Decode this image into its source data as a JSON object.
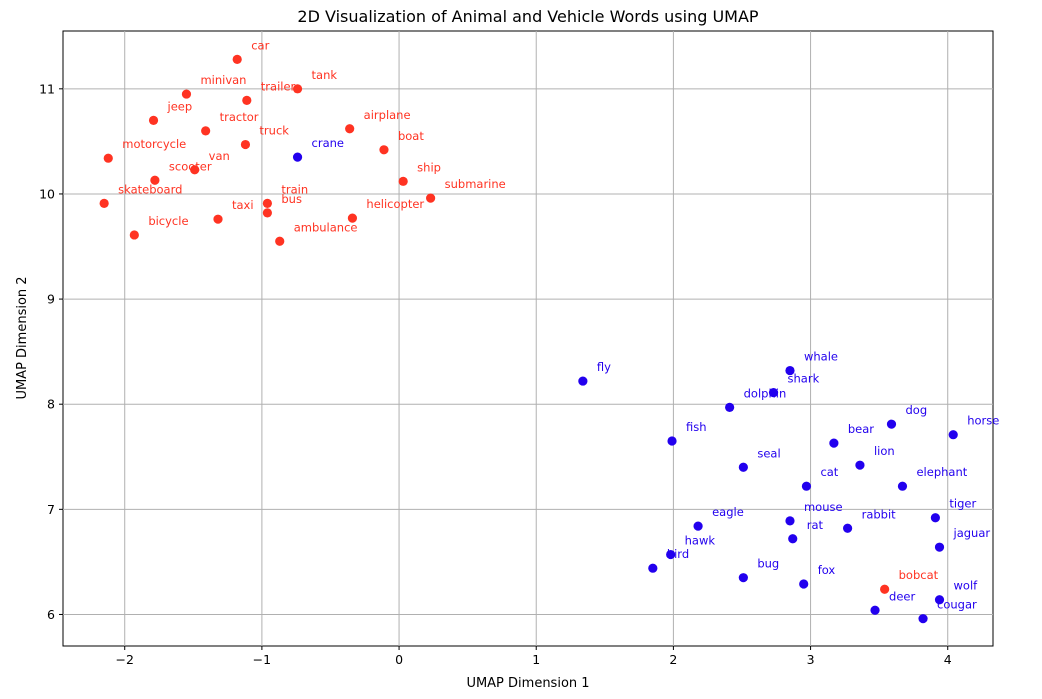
{
  "chart_data": {
    "type": "scatter",
    "title": "2D Visualization of Animal and Vehicle Words using UMAP",
    "xlabel": "UMAP Dimension 1",
    "ylabel": "UMAP Dimension 2",
    "xlim": [
      -2.45,
      4.33
    ],
    "ylim": [
      5.7,
      11.55
    ],
    "xticks": [
      -2,
      -1,
      0,
      1,
      2,
      3,
      4
    ],
    "yticks": [
      6,
      7,
      8,
      9,
      10,
      11
    ],
    "xtick_labels": [
      "−2",
      "−1",
      "0",
      "1",
      "2",
      "3",
      "4"
    ],
    "ytick_labels": [
      "6",
      "7",
      "8",
      "9",
      "10",
      "11"
    ],
    "grid": true,
    "colors": {
      "red": "#ff3322",
      "blue": "#2200ee"
    },
    "points": [
      {
        "label": "car",
        "x": -1.18,
        "y": 11.28,
        "color": "red"
      },
      {
        "label": "minivan",
        "x": -1.55,
        "y": 10.95,
        "color": "red"
      },
      {
        "label": "trailer",
        "x": -1.11,
        "y": 10.89,
        "color": "red"
      },
      {
        "label": "tank",
        "x": -0.74,
        "y": 11.0,
        "color": "red"
      },
      {
        "label": "jeep",
        "x": -1.79,
        "y": 10.7,
        "color": "red"
      },
      {
        "label": "tractor",
        "x": -1.41,
        "y": 10.6,
        "color": "red"
      },
      {
        "label": "airplane",
        "x": -0.36,
        "y": 10.62,
        "color": "red"
      },
      {
        "label": "truck",
        "x": -1.12,
        "y": 10.47,
        "color": "red"
      },
      {
        "label": "boat",
        "x": -0.11,
        "y": 10.42,
        "color": "red"
      },
      {
        "label": "motorcycle",
        "x": -2.12,
        "y": 10.34,
        "color": "red"
      },
      {
        "label": "crane",
        "x": -0.74,
        "y": 10.35,
        "color": "blue"
      },
      {
        "label": "van",
        "x": -1.49,
        "y": 10.23,
        "color": "red"
      },
      {
        "label": "scooter",
        "x": -1.78,
        "y": 10.13,
        "color": "red"
      },
      {
        "label": "ship",
        "x": 0.03,
        "y": 10.12,
        "color": "red"
      },
      {
        "label": "submarine",
        "x": 0.23,
        "y": 9.96,
        "color": "red"
      },
      {
        "label": "skateboard",
        "x": -2.15,
        "y": 9.91,
        "color": "red"
      },
      {
        "label": "train",
        "x": -0.96,
        "y": 9.91,
        "color": "red"
      },
      {
        "label": "bus",
        "x": -0.96,
        "y": 9.82,
        "color": "red"
      },
      {
        "label": "taxi",
        "x": -1.32,
        "y": 9.76,
        "color": "red"
      },
      {
        "label": "helicopter",
        "x": -0.34,
        "y": 9.77,
        "color": "red"
      },
      {
        "label": "bicycle",
        "x": -1.93,
        "y": 9.61,
        "color": "red"
      },
      {
        "label": "ambulance",
        "x": -0.87,
        "y": 9.55,
        "color": "red"
      },
      {
        "label": "fly",
        "x": 1.34,
        "y": 8.22,
        "color": "blue"
      },
      {
        "label": "whale",
        "x": 2.85,
        "y": 8.32,
        "color": "blue"
      },
      {
        "label": "shark",
        "x": 2.73,
        "y": 8.11,
        "color": "blue"
      },
      {
        "label": "dolphin",
        "x": 2.41,
        "y": 7.97,
        "color": "blue"
      },
      {
        "label": "dog",
        "x": 3.59,
        "y": 7.81,
        "color": "blue"
      },
      {
        "label": "horse",
        "x": 4.04,
        "y": 7.71,
        "color": "blue"
      },
      {
        "label": "fish",
        "x": 1.99,
        "y": 7.65,
        "color": "blue"
      },
      {
        "label": "bear",
        "x": 3.17,
        "y": 7.63,
        "color": "blue"
      },
      {
        "label": "lion",
        "x": 3.36,
        "y": 7.42,
        "color": "blue"
      },
      {
        "label": "seal",
        "x": 2.51,
        "y": 7.4,
        "color": "blue"
      },
      {
        "label": "cat",
        "x": 2.97,
        "y": 7.22,
        "color": "blue"
      },
      {
        "label": "elephant",
        "x": 3.67,
        "y": 7.22,
        "color": "blue"
      },
      {
        "label": "tiger",
        "x": 3.91,
        "y": 6.92,
        "color": "blue"
      },
      {
        "label": "mouse",
        "x": 2.85,
        "y": 6.89,
        "color": "blue"
      },
      {
        "label": "eagle",
        "x": 2.18,
        "y": 6.84,
        "color": "blue"
      },
      {
        "label": "rabbit",
        "x": 3.27,
        "y": 6.82,
        "color": "blue"
      },
      {
        "label": "rat",
        "x": 2.87,
        "y": 6.72,
        "color": "blue"
      },
      {
        "label": "jaguar",
        "x": 3.94,
        "y": 6.64,
        "color": "blue"
      },
      {
        "label": "hawk",
        "x": 1.98,
        "y": 6.57,
        "color": "blue"
      },
      {
        "label": "bird",
        "x": 1.85,
        "y": 6.44,
        "color": "blue"
      },
      {
        "label": "bug",
        "x": 2.51,
        "y": 6.35,
        "color": "blue"
      },
      {
        "label": "fox",
        "x": 2.95,
        "y": 6.29,
        "color": "blue"
      },
      {
        "label": "bobcat",
        "x": 3.54,
        "y": 6.24,
        "color": "red"
      },
      {
        "label": "wolf",
        "x": 3.94,
        "y": 6.14,
        "color": "blue"
      },
      {
        "label": "deer",
        "x": 3.47,
        "y": 6.04,
        "color": "blue"
      },
      {
        "label": "cougar",
        "x": 3.82,
        "y": 5.96,
        "color": "blue"
      }
    ]
  }
}
